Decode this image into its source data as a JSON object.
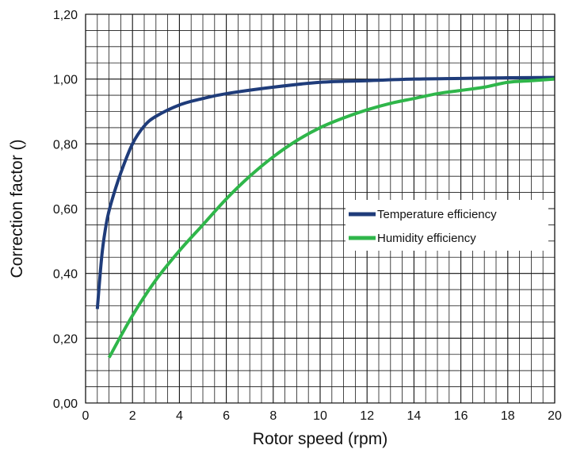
{
  "chart_data": {
    "type": "line",
    "xlabel": "Rotor speed (rpm)",
    "ylabel": "Correction factor ()",
    "xlim": [
      0,
      20
    ],
    "ylim": [
      0,
      1.2
    ],
    "x_ticks": [
      0,
      2,
      4,
      6,
      8,
      10,
      12,
      14,
      16,
      18,
      20
    ],
    "x_tick_labels": [
      "0",
      "2",
      "4",
      "6",
      "8",
      "10",
      "12",
      "14",
      "16",
      "18",
      "20"
    ],
    "y_ticks": [
      0,
      0.2,
      0.4,
      0.6,
      0.8,
      1.0,
      1.2
    ],
    "y_tick_labels": [
      "0,00",
      "0,20",
      "0,40",
      "0,60",
      "0,80",
      "1,00",
      "1,20"
    ],
    "grid": true,
    "legend_position": "center-right",
    "series": [
      {
        "name": "Temperature efficiency",
        "color": "#1f3c7a",
        "x": [
          0.5,
          0.7,
          0.9,
          1.1,
          1.5,
          2,
          2.5,
          3,
          4,
          5,
          6,
          8,
          10,
          12,
          14,
          16,
          18,
          20
        ],
        "y": [
          0.29,
          0.46,
          0.56,
          0.62,
          0.71,
          0.8,
          0.855,
          0.885,
          0.92,
          0.94,
          0.955,
          0.975,
          0.99,
          0.995,
          1.0,
          1.002,
          1.004,
          1.005
        ]
      },
      {
        "name": "Humidity efficiency",
        "color": "#2fb64a",
        "x": [
          1,
          2,
          3,
          4,
          5,
          6,
          7,
          8,
          9,
          10,
          11,
          12,
          13,
          14,
          15,
          16,
          17,
          18,
          19,
          20
        ],
        "y": [
          0.14,
          0.27,
          0.38,
          0.47,
          0.55,
          0.63,
          0.7,
          0.76,
          0.81,
          0.85,
          0.88,
          0.905,
          0.925,
          0.94,
          0.955,
          0.965,
          0.975,
          0.99,
          0.995,
          1.0
        ]
      }
    ]
  }
}
